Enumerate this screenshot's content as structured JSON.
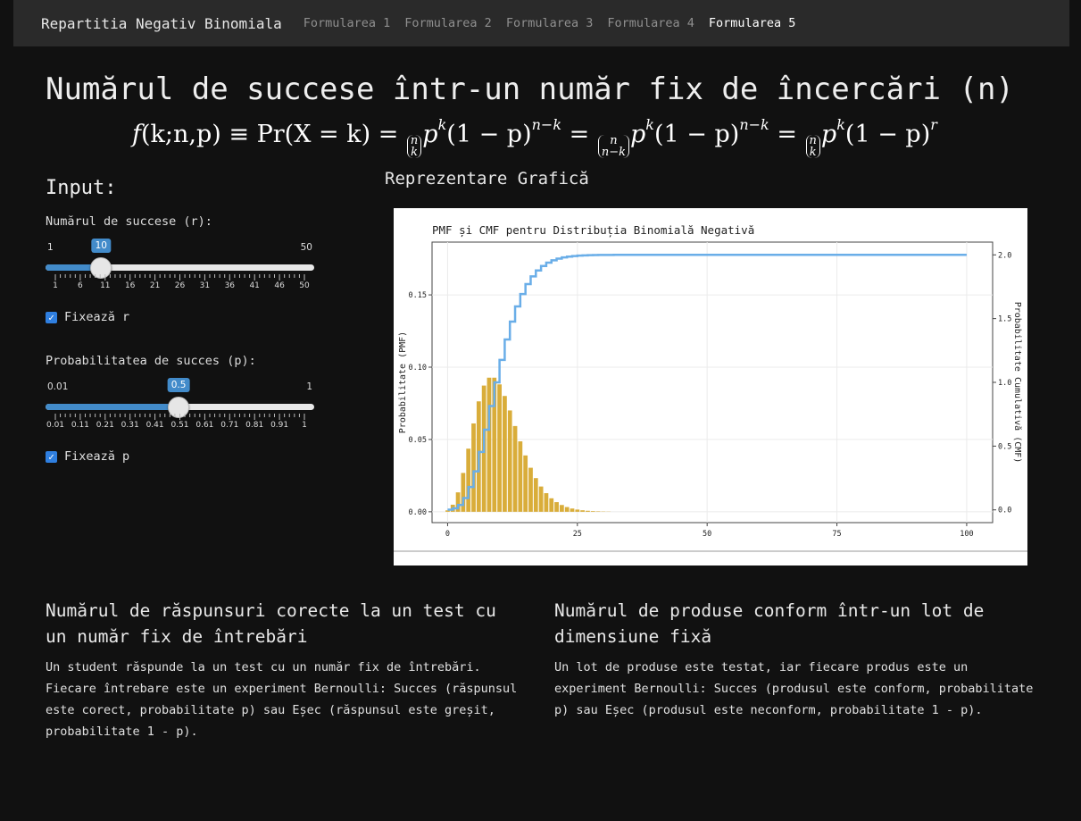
{
  "nav": {
    "brand": "Repartitia Negativ Binomiala",
    "links": [
      "Formularea 1",
      "Formularea 2",
      "Formularea 3",
      "Formularea 4",
      "Formularea 5"
    ],
    "active_index": 4
  },
  "page_title": "Numărul de succese într-un număr fix de încercări (n)",
  "formula": {
    "f": "f",
    "args": "(k;n,p)",
    "equiv": "≡",
    "pr": "Pr",
    "event": "(X = k) =",
    "n": "n",
    "k": "k",
    "nmk": "n−k",
    "p": "p",
    "one_minus_p": "(1 − p)",
    "eq": "=",
    "r": "r"
  },
  "input": {
    "title": "Input:",
    "r_slider": {
      "label": "Numărul de succese (r):",
      "min": "1",
      "max": "50",
      "value": "10",
      "fraction": 0.1837,
      "ticks": [
        "1",
        "6",
        "11",
        "16",
        "21",
        "26",
        "31",
        "36",
        "41",
        "46",
        "50"
      ]
    },
    "fix_r": {
      "label": "Fixează r",
      "checked": true,
      "mark": "✓"
    },
    "p_slider": {
      "label": "Probabilitatea de succes (p):",
      "min": "0.01",
      "max": "1",
      "value": "0.5",
      "fraction": 0.4949,
      "ticks": [
        "0.01",
        "0.11",
        "0.21",
        "0.31",
        "0.41",
        "0.51",
        "0.61",
        "0.71",
        "0.81",
        "0.91",
        "1"
      ]
    },
    "fix_p": {
      "label": "Fixează p",
      "checked": true,
      "mark": "✓"
    }
  },
  "graph_section_title": "Reprezentare Grafică",
  "chart_data": {
    "type": "bar",
    "title": "PMF și CMF pentru Distribuția Binomială Negativă",
    "ylabel": "Probabilitate (PMF)",
    "y2label": "Probabilitate Cumulativă (CMF)",
    "xlim": [
      0,
      100
    ],
    "ylim": [
      0,
      0.175
    ],
    "y2lim": [
      0,
      2.0
    ],
    "x_ticks": [
      0,
      25,
      50,
      75,
      100
    ],
    "y_ticks": [
      "0.00",
      "0.05",
      "0.10",
      "0.15"
    ],
    "y2_ticks": [
      "0.0",
      "0.5",
      "1.0",
      "1.5",
      "2.0"
    ],
    "r": 10,
    "p": 0.5,
    "n_max": 100,
    "grid": true,
    "colors": {
      "bars": "#d9ad3a",
      "line": "#6aaee8"
    }
  },
  "cards": [
    {
      "title": "Numărul de răspunsuri corecte la un test cu un număr fix de întrebări",
      "text": "Un student răspunde la un test cu un număr fix de întrebări. Fiecare întrebare este un experiment Bernoulli: Succes (răspunsul este corect, probabilitate p) sau Eșec (răspunsul este greșit, probabilitate 1 - p)."
    },
    {
      "title": "Numărul de produse conform într-un lot de dimensiune fixă",
      "text": "Un lot de produse este testat, iar fiecare produs este un experiment Bernoulli: Succes (produsul este conform, probabilitate p) sau Eșec (produsul este neconform, probabilitate 1 - p)."
    }
  ]
}
